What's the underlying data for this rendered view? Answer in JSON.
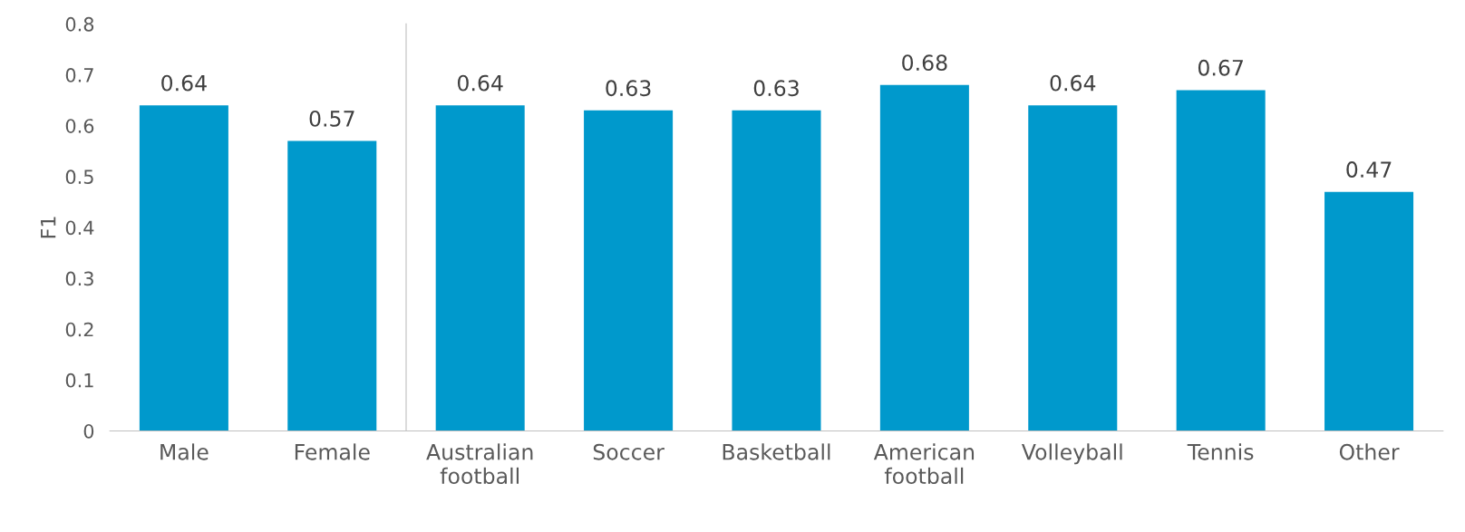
{
  "chart_data": [
    {
      "type": "bar",
      "ylabel": "F1",
      "categories": [
        "Male",
        "Female"
      ],
      "values": [
        0.64,
        0.57
      ],
      "color": "#0099cc",
      "ylim": [
        0,
        0.8
      ],
      "yticks": [
        0,
        0.1,
        0.2,
        0.3,
        0.4,
        0.5,
        0.6,
        0.7,
        0.8
      ],
      "data_labels": true
    },
    {
      "type": "bar",
      "categories": [
        "Australian\nfootball",
        "Soccer",
        "Basketball",
        "American\nfootball",
        "Volleyball",
        "Tennis",
        "Other"
      ],
      "values": [
        0.64,
        0.63,
        0.63,
        0.68,
        0.64,
        0.67,
        0.47
      ],
      "color": "#0099cc",
      "ylim": [
        0,
        0.8
      ],
      "yticks": [
        0,
        0.1,
        0.2,
        0.3,
        0.4,
        0.5,
        0.6,
        0.7,
        0.8
      ],
      "tick_labels": "x",
      "data_labels": true
    }
  ]
}
